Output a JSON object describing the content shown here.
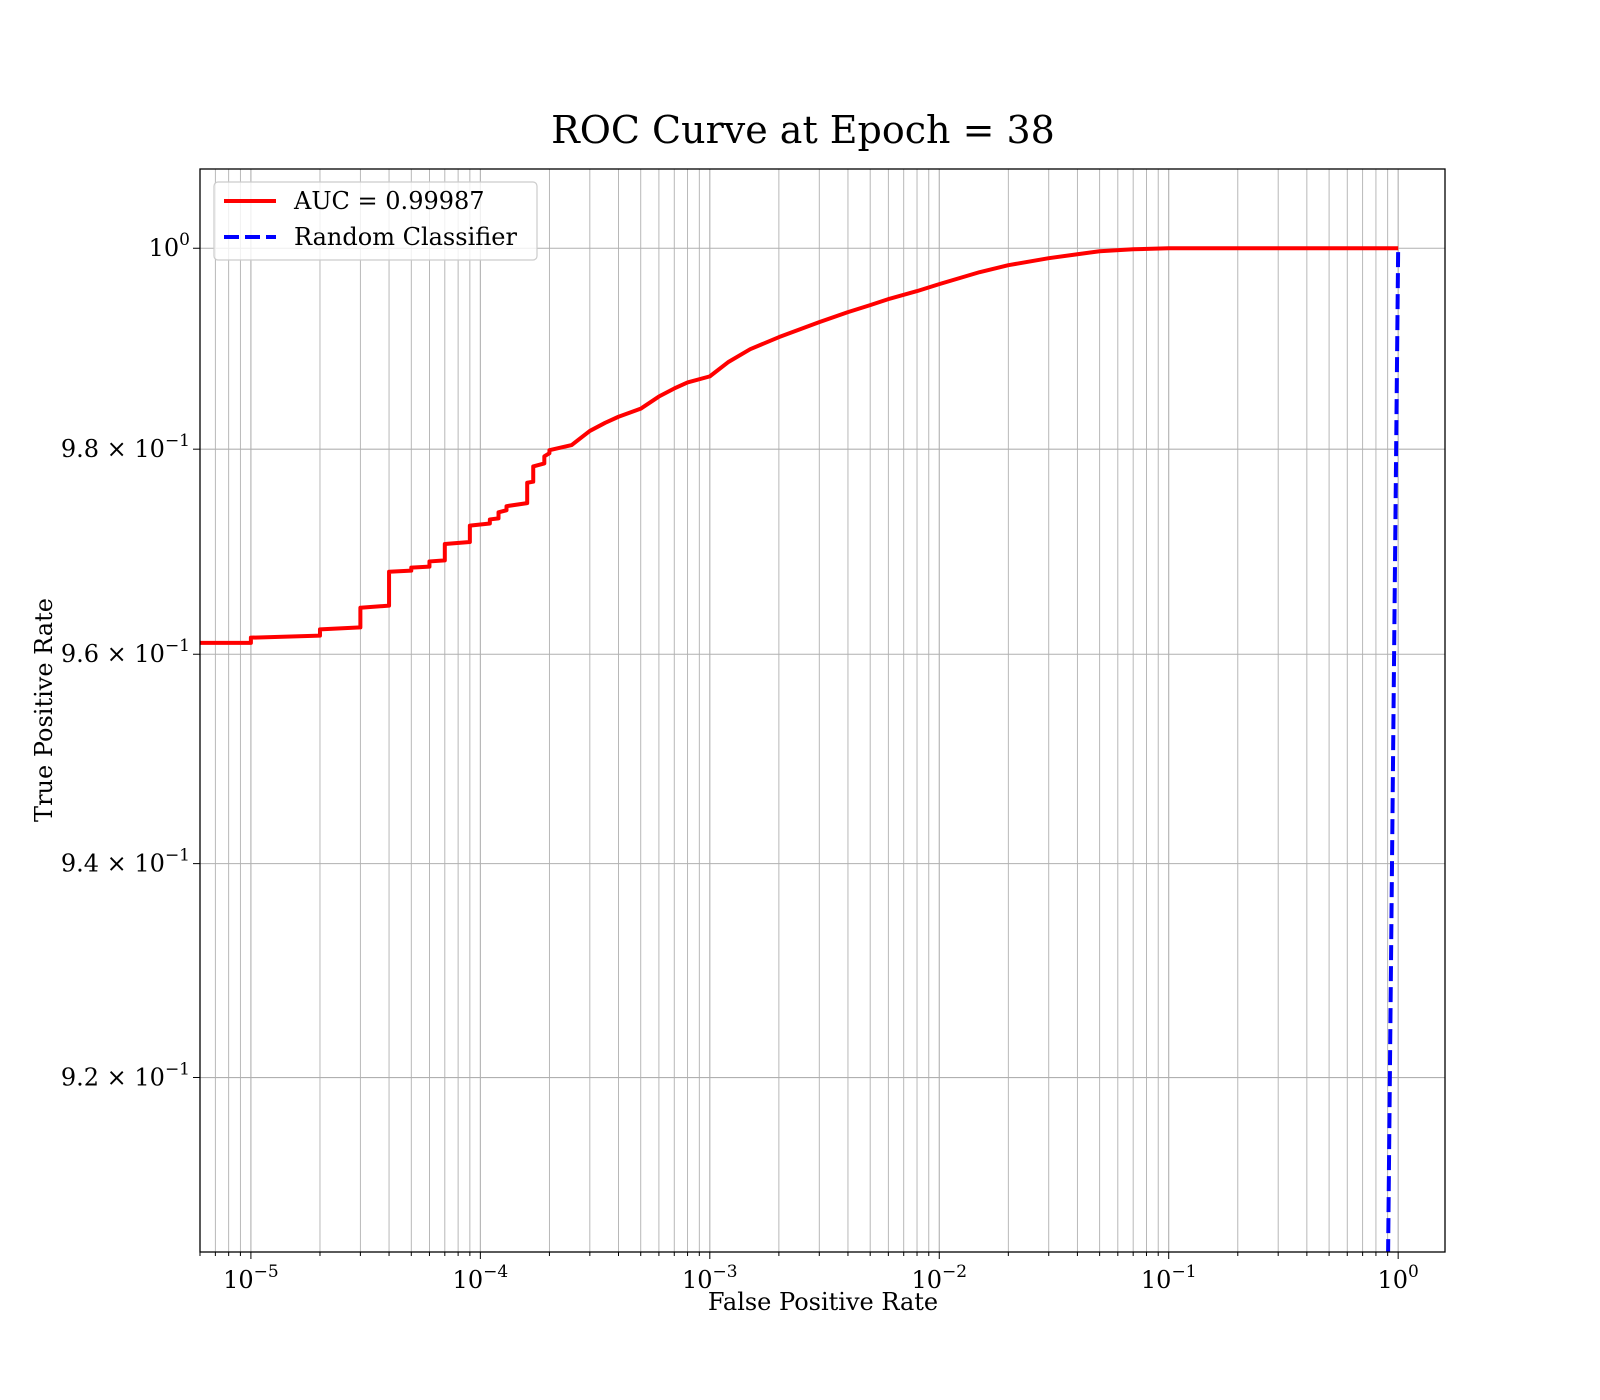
{
  "chart_data": {
    "type": "line",
    "title": "ROC Curve at Epoch = 38",
    "xlabel": "False Positive Rate",
    "ylabel": "True Positive Rate",
    "xscale": "log",
    "yscale": "log",
    "xlim": [
      6e-06,
      1.6
    ],
    "ylim": [
      0.904,
      1.008
    ],
    "grid": true,
    "grid_minor": true,
    "legend_position": "top-left",
    "x_ticks": [
      {
        "value": 1e-05,
        "base": "10",
        "exp": "−5"
      },
      {
        "value": 0.0001,
        "base": "10",
        "exp": "−4"
      },
      {
        "value": 0.001,
        "base": "10",
        "exp": "−3"
      },
      {
        "value": 0.01,
        "base": "10",
        "exp": "−2"
      },
      {
        "value": 0.1,
        "base": "10",
        "exp": "−1"
      },
      {
        "value": 1,
        "base": "10",
        "exp": "0"
      }
    ],
    "y_ticks": [
      {
        "value": 1.0,
        "base": "10",
        "exp": "0"
      },
      {
        "value": 0.98,
        "base": "9.8 × 10",
        "exp": "−1"
      },
      {
        "value": 0.96,
        "base": "9.6 × 10",
        "exp": "−1"
      },
      {
        "value": 0.94,
        "base": "9.4 × 10",
        "exp": "−1"
      },
      {
        "value": 0.92,
        "base": "9.2 × 10",
        "exp": "−1"
      }
    ],
    "series": [
      {
        "name": "AUC = 0.99987",
        "color": "#ff0000",
        "style": "solid",
        "x": [
          6e-06,
          1e-05,
          1e-05,
          2e-05,
          2e-05,
          3e-05,
          3e-05,
          4e-05,
          4e-05,
          5e-05,
          5e-05,
          6e-05,
          6e-05,
          7e-05,
          7e-05,
          9e-05,
          9e-05,
          0.00011,
          0.00011,
          0.00012,
          0.00012,
          0.00013,
          0.00013,
          0.00016,
          0.00016,
          0.00017,
          0.00017,
          0.00019,
          0.00019,
          0.0002,
          0.0002,
          0.00025,
          0.00027,
          0.0003,
          0.00035,
          0.0004,
          0.0005,
          0.0006,
          0.0007,
          0.0008,
          0.001,
          0.0012,
          0.0015,
          0.002,
          0.003,
          0.004,
          0.005,
          0.006,
          0.008,
          0.01,
          0.015,
          0.02,
          0.03,
          0.04,
          0.05,
          0.07,
          0.1,
          0.2,
          0.5,
          1.0
        ],
        "y": [
          0.9611,
          0.9611,
          0.9616,
          0.9618,
          0.9624,
          0.9626,
          0.9645,
          0.9647,
          0.968,
          0.9681,
          0.9684,
          0.9685,
          0.969,
          0.9691,
          0.9707,
          0.9709,
          0.9725,
          0.9727,
          0.9731,
          0.9732,
          0.9738,
          0.974,
          0.9744,
          0.9747,
          0.9767,
          0.9768,
          0.9783,
          0.9786,
          0.9793,
          0.9796,
          0.9799,
          0.9804,
          0.981,
          0.9818,
          0.9826,
          0.9832,
          0.984,
          0.9852,
          0.986,
          0.9866,
          0.9872,
          0.9886,
          0.9899,
          0.9911,
          0.9926,
          0.9936,
          0.9943,
          0.9949,
          0.9957,
          0.9964,
          0.9976,
          0.9983,
          0.999,
          0.9994,
          0.9997,
          0.9999,
          1.0,
          1.0,
          1.0,
          1.0
        ]
      },
      {
        "name": "Random Classifier",
        "color": "#0000ff",
        "style": "dashed",
        "x": [
          0.9,
          1.0
        ],
        "y": [
          0.9,
          1.0
        ]
      }
    ]
  }
}
